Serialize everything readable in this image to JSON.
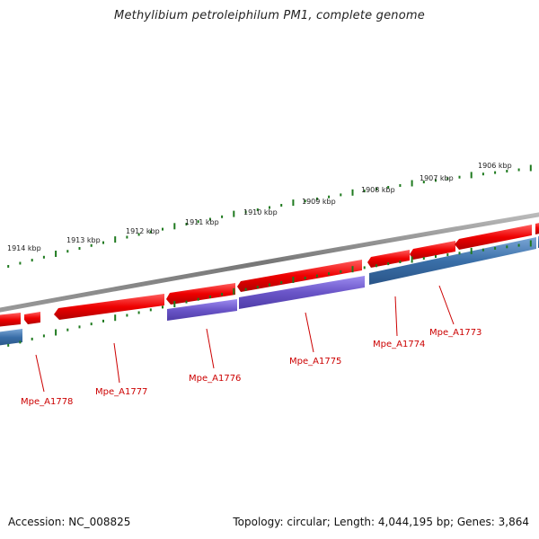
{
  "title": "Methylibium petroleiphilum PM1, complete genome",
  "footer": {
    "accession": "Accession: NC_008825",
    "summary": "Topology: circular; Length: 4,044,195 bp; Genes: 3,864"
  },
  "colors": {
    "backbone": "#888888",
    "forward_gene": "#ee0000",
    "reverse_gene_blue": "#3a6fa8",
    "reverse_gene_purple": "#6a55c8",
    "tick": "#1f7a1f",
    "gene_label": "#cc0000"
  },
  "scale_labels": [
    "1914 kbp",
    "1913 kbp",
    "1912 kbp",
    "1911 kbp",
    "1910 kbp",
    "1909 kbp",
    "1908 kbp",
    "1907 kbp",
    "1906 kbp"
  ],
  "gene_labels": [
    "Mpe_A1778",
    "Mpe_A1777",
    "Mpe_A1776",
    "Mpe_A1775",
    "Mpe_A1774",
    "Mpe_A1773"
  ]
}
